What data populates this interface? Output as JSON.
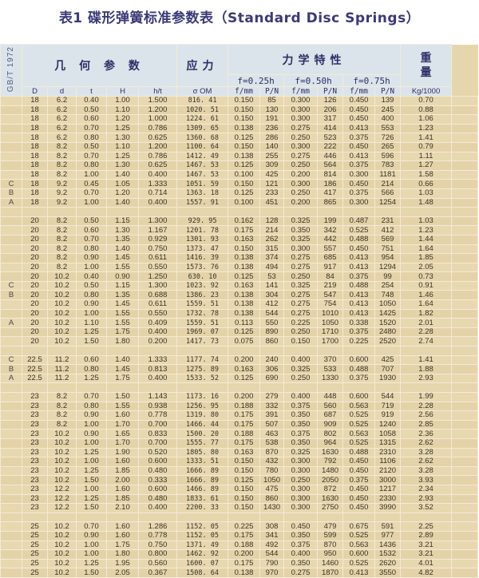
{
  "title": "表1  碟形弹簧标准参数表（Standard Disc Springs）",
  "header": {
    "standard": "GB/T 1972",
    "geometry": "几 何 参 数",
    "stress": "应力",
    "mechanics": "力学特性",
    "weight": "重量",
    "deflections": [
      "f=0.25h",
      "f=0.50h",
      "f=0.75h"
    ],
    "columns": [
      "D",
      "d",
      "t",
      "H",
      "h/t",
      "σ OM",
      "f/mm",
      "P/N",
      "f/mm",
      "P/N",
      "f/mm",
      "P/N",
      "Kg/1000"
    ]
  },
  "groups": [
    {
      "rows": [
        [
          "",
          "18",
          "6.2",
          "0.40",
          "1.00",
          "1.500",
          "816. 41",
          "0.150",
          "85",
          "0.300",
          "126",
          "0.450",
          "139",
          "0.70"
        ],
        [
          "",
          "18",
          "6.2",
          "0.50",
          "1.10",
          "1.200",
          "1020. 51",
          "0.150",
          "130",
          "0.300",
          "206",
          "0.450",
          "245",
          "0.88"
        ],
        [
          "",
          "18",
          "6.2",
          "0.60",
          "1.20",
          "1.000",
          "1224. 61",
          "0.150",
          "191",
          "0.300",
          "317",
          "0.450",
          "400",
          "1.06"
        ],
        [
          "",
          "18",
          "6.2",
          "0.70",
          "1.25",
          "0.786",
          "1309. 65",
          "0.138",
          "236",
          "0.275",
          "414",
          "0.413",
          "553",
          "1.23"
        ],
        [
          "",
          "18",
          "6.2",
          "0.80",
          "1.30",
          "0.625",
          "1360. 68",
          "0.125",
          "286",
          "0.250",
          "523",
          "0.375",
          "726",
          "1.41"
        ],
        [
          "",
          "18",
          "8.2",
          "0.50",
          "1.10",
          "1.200",
          "1100. 64",
          "0.150",
          "140",
          "0.300",
          "222",
          "0.450",
          "265",
          "0.79"
        ],
        [
          "",
          "18",
          "8.2",
          "0.70",
          "1.25",
          "0.786",
          "1412. 49",
          "0.138",
          "255",
          "0.275",
          "446",
          "0.413",
          "596",
          "1.11"
        ],
        [
          "",
          "18",
          "8.2",
          "0.80",
          "1.30",
          "0.625",
          "1467. 53",
          "0.125",
          "309",
          "0.250",
          "564",
          "0.375",
          "783",
          "1.27"
        ],
        [
          "",
          "18",
          "8.2",
          "1.00",
          "1.40",
          "0.400",
          "1467. 53",
          "0.100",
          "425",
          "0.200",
          "814",
          "0.300",
          "1181",
          "1.58"
        ],
        [
          "C",
          "18",
          "9.2",
          "0.45",
          "1.05",
          "1.333",
          "1051. 59",
          "0.150",
          "121",
          "0.300",
          "186",
          "0.450",
          "214",
          "0.66"
        ],
        [
          "B",
          "18",
          "9.2",
          "0.70",
          "1.20",
          "0.714",
          "1363. 18",
          "0.125",
          "233",
          "0.250",
          "417",
          "0.375",
          "566",
          "1.03"
        ],
        [
          "A",
          "18",
          "9.2",
          "1.00",
          "1.40",
          "0.400",
          "1557. 91",
          "0.100",
          "451",
          "0.200",
          "865",
          "0.300",
          "1254",
          "1.48"
        ]
      ]
    },
    {
      "rows": [
        [
          "",
          "20",
          "8.2",
          "0.50",
          "1.15",
          "1.300",
          "929. 95",
          "0.162",
          "128",
          "0.325",
          "199",
          "0.487",
          "231",
          "1.03"
        ],
        [
          "",
          "20",
          "8.2",
          "0.60",
          "1.30",
          "1.167",
          "1201. 78",
          "0.175",
          "214",
          "0.350",
          "342",
          "0.525",
          "412",
          "1.23"
        ],
        [
          "",
          "20",
          "8.2",
          "0.70",
          "1.35",
          "0.929",
          "1301. 93",
          "0.163",
          "262",
          "0.325",
          "442",
          "0.488",
          "569",
          "1.44"
        ],
        [
          "",
          "20",
          "8.2",
          "0.80",
          "1.40",
          "0.750",
          "1373. 47",
          "0.150",
          "315",
          "0.300",
          "557",
          "0.450",
          "751",
          "1.64"
        ],
        [
          "",
          "20",
          "8.2",
          "0.90",
          "1.45",
          "0.611",
          "1416. 39",
          "0.138",
          "374",
          "0.275",
          "685",
          "0.413",
          "954",
          "1.85"
        ],
        [
          "",
          "20",
          "8.2",
          "1.00",
          "1.55",
          "0.550",
          "1573. 76",
          "0.138",
          "494",
          "0.275",
          "917",
          "0.413",
          "1294",
          "2.05"
        ],
        [
          "",
          "20",
          "10.2",
          "0.40",
          "0.90",
          "1.250",
          "630. 10",
          "0.125",
          "53",
          "0.250",
          "84",
          "0.375",
          "99",
          "0.73"
        ],
        [
          "C",
          "20",
          "10.2",
          "0.50",
          "1.15",
          "1.300",
          "1023. 92",
          "0.163",
          "141",
          "0.325",
          "219",
          "0.488",
          "254",
          "0.91"
        ],
        [
          "B",
          "20",
          "10.2",
          "0.80",
          "1.35",
          "0.688",
          "1386. 23",
          "0.138",
          "304",
          "0.275",
          "547",
          "0.413",
          "748",
          "1.46"
        ],
        [
          "",
          "20",
          "10.2",
          "0.90",
          "1.45",
          "0.611",
          "1559. 51",
          "0.138",
          "412",
          "0.275",
          "754",
          "0.413",
          "1050",
          "1.64"
        ],
        [
          "",
          "20",
          "10.2",
          "1.00",
          "1.55",
          "0.550",
          "1732. 78",
          "0.138",
          "544",
          "0.275",
          "1010",
          "0.413",
          "1425",
          "1.82"
        ],
        [
          "A",
          "20",
          "10.2",
          "1.10",
          "1.55",
          "0.409",
          "1559. 51",
          "0.113",
          "550",
          "0.225",
          "1050",
          "0.338",
          "1520",
          "2.01"
        ],
        [
          "",
          "20",
          "10.2",
          "1.25",
          "1.75",
          "0.400",
          "1969. 07",
          "0.125",
          "890",
          "0.250",
          "1710",
          "0.375",
          "2480",
          "2.28"
        ],
        [
          "",
          "20",
          "10.2",
          "1.50",
          "1.80",
          "0.200",
          "1417. 73",
          "0.075",
          "860",
          "0.150",
          "1700",
          "0.225",
          "2520",
          "2.74"
        ]
      ]
    },
    {
      "rows": [
        [
          "C",
          "22.5",
          "11.2",
          "0.60",
          "1.40",
          "1.333",
          "1177. 74",
          "0.200",
          "240",
          "0.400",
          "370",
          "0.600",
          "425",
          "1.41"
        ],
        [
          "B",
          "22.5",
          "11.2",
          "0.80",
          "1.45",
          "0.813",
          "1275. 89",
          "0.163",
          "306",
          "0.325",
          "533",
          "0.488",
          "707",
          "1.88"
        ],
        [
          "A",
          "22.5",
          "11.2",
          "1.25",
          "1.75",
          "0.400",
          "1533. 52",
          "0.125",
          "690",
          "0.250",
          "1330",
          "0.375",
          "1930",
          "2.93"
        ]
      ]
    },
    {
      "rows": [
        [
          "",
          "23",
          "8.2",
          "0.70",
          "1.50",
          "1.143",
          "1173. 16",
          "0.200",
          "279",
          "0.400",
          "448",
          "0.600",
          "544",
          "1.99"
        ],
        [
          "",
          "23",
          "8.2",
          "0.80",
          "1.55",
          "0.938",
          "1256. 95",
          "0.188",
          "332",
          "0.375",
          "560",
          "0.563",
          "719",
          "2.28"
        ],
        [
          "",
          "23",
          "8.2",
          "0.90",
          "1.60",
          "0.778",
          "1319. 80",
          "0.175",
          "391",
          "0.350",
          "687",
          "0.525",
          "919",
          "2.56"
        ],
        [
          "",
          "23",
          "8.2",
          "1.00",
          "1.70",
          "0.700",
          "1466. 44",
          "0.175",
          "507",
          "0.350",
          "909",
          "0.525",
          "1240",
          "2.85"
        ],
        [
          "",
          "23",
          "10.2",
          "0.90",
          "1.65",
          "0.833",
          "1500. 20",
          "0.188",
          "463",
          "0.375",
          "802",
          "0.563",
          "1058",
          "2.36"
        ],
        [
          "",
          "23",
          "10.2",
          "1.00",
          "1.70",
          "0.700",
          "1555. 77",
          "0.175",
          "538",
          "0.350",
          "964",
          "0.525",
          "1315",
          "2.62"
        ],
        [
          "",
          "23",
          "10.2",
          "1.25",
          "1.90",
          "0.520",
          "1805. 80",
          "0.163",
          "870",
          "0.325",
          "1630",
          "0.488",
          "2310",
          "3.28"
        ],
        [
          "",
          "23",
          "10.2",
          "1.00",
          "1.60",
          "0.600",
          "1333. 51",
          "0.150",
          "432",
          "0.300",
          "792",
          "0.450",
          "1106",
          "2.62"
        ],
        [
          "",
          "23",
          "10.2",
          "1.25",
          "1.85",
          "0.480",
          "1666. 89",
          "0.150",
          "780",
          "0.300",
          "1480",
          "0.450",
          "2120",
          "3.28"
        ],
        [
          "",
          "23",
          "10.2",
          "1.50",
          "2.00",
          "0.333",
          "1666. 89",
          "0.125",
          "1050",
          "0.250",
          "2050",
          "0.375",
          "3000",
          "3.93"
        ],
        [
          "",
          "23",
          "12.2",
          "1.00",
          "1.60",
          "0.600",
          "1466. 89",
          "0.150",
          "475",
          "0.300",
          "872",
          "0.450",
          "1217",
          "2.34"
        ],
        [
          "",
          "23",
          "12.2",
          "1.25",
          "1.85",
          "0.480",
          "1833. 61",
          "0.150",
          "860",
          "0.300",
          "1630",
          "0.450",
          "2330",
          "2.93"
        ],
        [
          "",
          "23",
          "12.2",
          "1.50",
          "2.10",
          "0.400",
          "2200. 33",
          "0.150",
          "1430",
          "0.300",
          "2750",
          "0.450",
          "3990",
          "3.52"
        ]
      ]
    },
    {
      "rows": [
        [
          "",
          "25",
          "10.2",
          "0.70",
          "1.60",
          "1.286",
          "1152. 05",
          "0.225",
          "308",
          "0.450",
          "479",
          "0.675",
          "591",
          "2.25"
        ],
        [
          "",
          "25",
          "10.2",
          "0.90",
          "1.60",
          "0.778",
          "1152. 05",
          "0.175",
          "341",
          "0.350",
          "599",
          "0.525",
          "977",
          "2.89"
        ],
        [
          "",
          "25",
          "10.2",
          "1.00",
          "1.75",
          "0.750",
          "1371. 49",
          "0.188",
          "492",
          "0.375",
          "870",
          "0.563",
          "1436",
          "3.21"
        ],
        [
          "",
          "25",
          "10.2",
          "1.00",
          "1.80",
          "0.800",
          "1462. 92",
          "0.200",
          "544",
          "0.400",
          "950",
          "0.600",
          "1532",
          "3.21"
        ],
        [
          "",
          "25",
          "10.2",
          "1.25",
          "1.95",
          "0.560",
          "1600. 07",
          "0.175",
          "790",
          "0.350",
          "1460",
          "0.525",
          "2620",
          "4.01"
        ],
        [
          "",
          "25",
          "10.2",
          "1.50",
          "2.05",
          "0.367",
          "1508. 64",
          "0.138",
          "970",
          "0.275",
          "1870",
          "0.413",
          "3550",
          "4.82"
        ]
      ]
    }
  ]
}
